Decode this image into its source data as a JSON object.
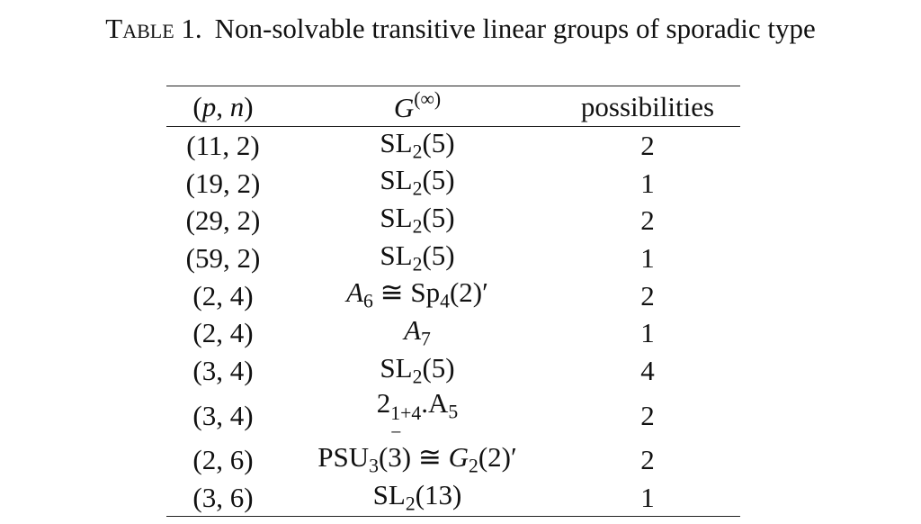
{
  "caption": {
    "label": "Table 1.",
    "text": "Non-solvable transitive linear groups of sporadic type"
  },
  "table": {
    "header": [
      [
        {
          "s": "n",
          "text": "("
        },
        {
          "s": "i",
          "text": "p"
        },
        {
          "s": "n",
          "text": ", "
        },
        {
          "s": "i",
          "text": "n"
        },
        {
          "s": "n",
          "text": ")"
        }
      ],
      [
        {
          "s": "i",
          "text": "G"
        },
        {
          "s": "sup",
          "text": "(∞)"
        }
      ],
      [
        {
          "s": "n",
          "text": "possibilities"
        }
      ]
    ],
    "rows": [
      [
        [
          {
            "s": "n",
            "text": "(11, 2)"
          }
        ],
        [
          {
            "s": "n",
            "text": "SL"
          },
          {
            "s": "sub",
            "text": "2"
          },
          {
            "s": "n",
            "text": "(5)"
          }
        ],
        [
          {
            "s": "n",
            "text": "2"
          }
        ]
      ],
      [
        [
          {
            "s": "n",
            "text": "(19, 2)"
          }
        ],
        [
          {
            "s": "n",
            "text": "SL"
          },
          {
            "s": "sub",
            "text": "2"
          },
          {
            "s": "n",
            "text": "(5)"
          }
        ],
        [
          {
            "s": "n",
            "text": "1"
          }
        ]
      ],
      [
        [
          {
            "s": "n",
            "text": "(29, 2)"
          }
        ],
        [
          {
            "s": "n",
            "text": "SL"
          },
          {
            "s": "sub",
            "text": "2"
          },
          {
            "s": "n",
            "text": "(5)"
          }
        ],
        [
          {
            "s": "n",
            "text": "2"
          }
        ]
      ],
      [
        [
          {
            "s": "n",
            "text": "(59, 2)"
          }
        ],
        [
          {
            "s": "n",
            "text": "SL"
          },
          {
            "s": "sub",
            "text": "2"
          },
          {
            "s": "n",
            "text": "(5)"
          }
        ],
        [
          {
            "s": "n",
            "text": "1"
          }
        ]
      ],
      [
        [
          {
            "s": "n",
            "text": "(2, 4)"
          }
        ],
        [
          {
            "s": "i",
            "text": "A"
          },
          {
            "s": "sub",
            "text": "6"
          },
          {
            "s": "n",
            "text": " ≅ Sp"
          },
          {
            "s": "sub",
            "text": "4"
          },
          {
            "s": "n",
            "text": "(2)′"
          }
        ],
        [
          {
            "s": "n",
            "text": "2"
          }
        ]
      ],
      [
        [
          {
            "s": "n",
            "text": "(2, 4)"
          }
        ],
        [
          {
            "s": "i",
            "text": "A"
          },
          {
            "s": "sub",
            "text": "7"
          }
        ],
        [
          {
            "s": "n",
            "text": "1"
          }
        ]
      ],
      [
        [
          {
            "s": "n",
            "text": "(3, 4)"
          }
        ],
        [
          {
            "s": "n",
            "text": "SL"
          },
          {
            "s": "sub",
            "text": "2"
          },
          {
            "s": "n",
            "text": "(5)"
          }
        ],
        [
          {
            "s": "n",
            "text": "4"
          }
        ]
      ],
      [
        [
          {
            "s": "n",
            "text": "(3, 4)"
          }
        ],
        [
          {
            "s": "n",
            "text": "2"
          },
          {
            "s": "subsup",
            "sub": "−",
            "sup": "1+4"
          },
          {
            "s": "n",
            "text": ".A"
          },
          {
            "s": "sub",
            "text": "5"
          }
        ],
        [
          {
            "s": "n",
            "text": "2"
          }
        ]
      ],
      [
        [
          {
            "s": "n",
            "text": "(2, 6)"
          }
        ],
        [
          {
            "s": "n",
            "text": "PSU"
          },
          {
            "s": "sub",
            "text": "3"
          },
          {
            "s": "n",
            "text": "(3) ≅ "
          },
          {
            "s": "i",
            "text": "G"
          },
          {
            "s": "sub",
            "text": "2"
          },
          {
            "s": "n",
            "text": "(2)′"
          }
        ],
        [
          {
            "s": "n",
            "text": "2"
          }
        ]
      ],
      [
        [
          {
            "s": "n",
            "text": "(3, 6)"
          }
        ],
        [
          {
            "s": "n",
            "text": "SL"
          },
          {
            "s": "sub",
            "text": "2"
          },
          {
            "s": "n",
            "text": "(13)"
          }
        ],
        [
          {
            "s": "n",
            "text": "1"
          }
        ]
      ]
    ]
  }
}
